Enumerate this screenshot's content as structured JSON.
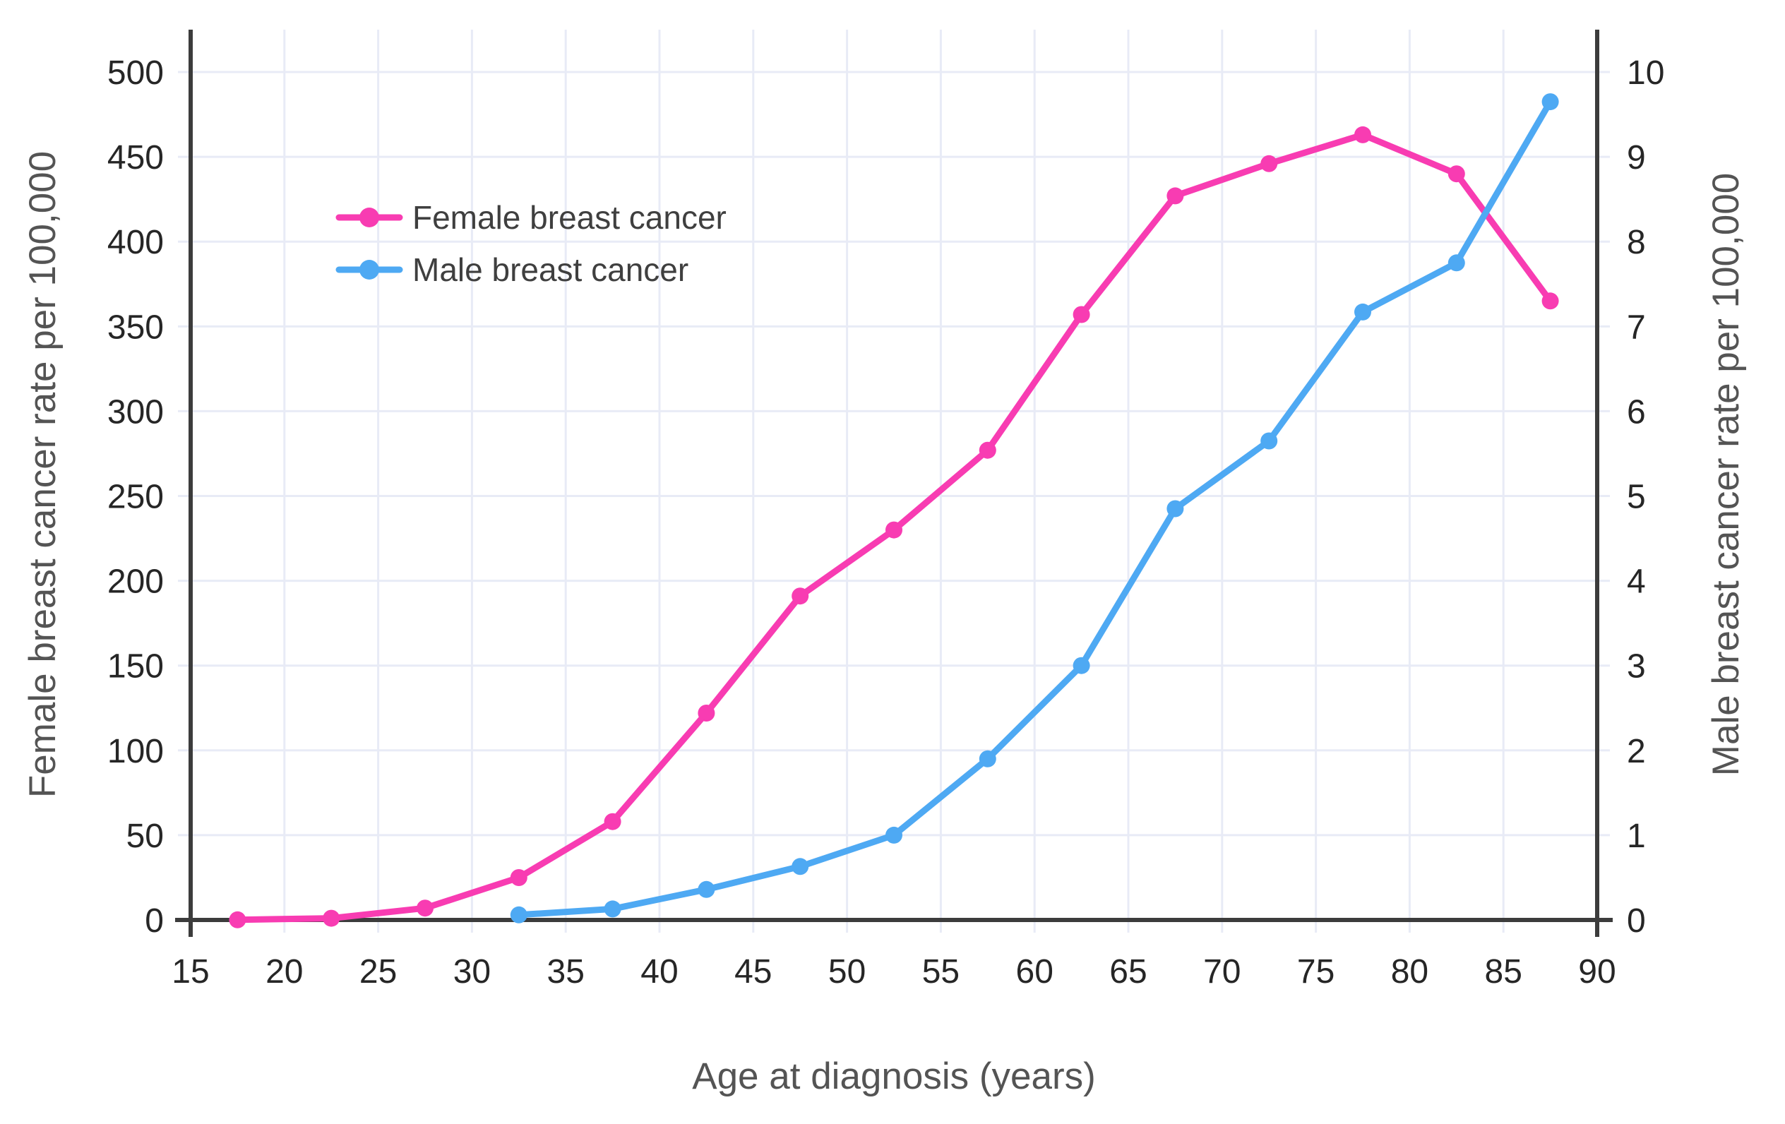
{
  "chart_data": {
    "type": "line",
    "title": "",
    "xlabel": "Age at diagnosis (years)",
    "ylabel_left": "Female breast cancer rate per 100,000",
    "ylabel_right": "Male breast cancer rate per 100,000",
    "xlim": [
      15,
      90
    ],
    "ylim_left": [
      0,
      525
    ],
    "ylim_right": [
      0,
      10.5
    ],
    "x_ticks": [
      15,
      20,
      25,
      30,
      35,
      40,
      45,
      50,
      55,
      60,
      65,
      70,
      75,
      80,
      85,
      90
    ],
    "y_left_ticks": [
      0,
      50,
      100,
      150,
      200,
      250,
      300,
      350,
      400,
      450,
      500
    ],
    "y_right_ticks": [
      0,
      1,
      2,
      3,
      4,
      5,
      6,
      7,
      8,
      9,
      10
    ],
    "grid": true,
    "legend_position": "upper-left-inside",
    "series": [
      {
        "name": "Female breast cancer",
        "axis": "left",
        "color": "#f83cb2",
        "x": [
          17.5,
          22.5,
          27.5,
          32.5,
          37.5,
          42.5,
          47.5,
          52.5,
          57.5,
          62.5,
          67.5,
          72.5,
          77.5,
          82.5,
          87.5
        ],
        "values": [
          0.1,
          1,
          7,
          25,
          58,
          122,
          191,
          230,
          277,
          357,
          427,
          446,
          463,
          440,
          365
        ]
      },
      {
        "name": "Male breast cancer",
        "axis": "right",
        "color": "#4ea9f3",
        "x": [
          32.5,
          37.5,
          42.5,
          47.5,
          52.5,
          57.5,
          62.5,
          67.5,
          72.5,
          77.5,
          82.5,
          87.5
        ],
        "values": [
          0.06,
          0.13,
          0.36,
          0.63,
          1.0,
          1.9,
          3.0,
          4.85,
          5.65,
          7.17,
          7.75,
          9.65
        ]
      }
    ]
  },
  "colors": {
    "background": "#ffffff",
    "gridline": "#e8ebf6",
    "spine": "#3c3c3c",
    "tick_text": "#262626",
    "title_text": "#545454",
    "legend_text": "#3f3f3f",
    "female_series": "#f83cb2",
    "male_series": "#4ea9f3"
  }
}
